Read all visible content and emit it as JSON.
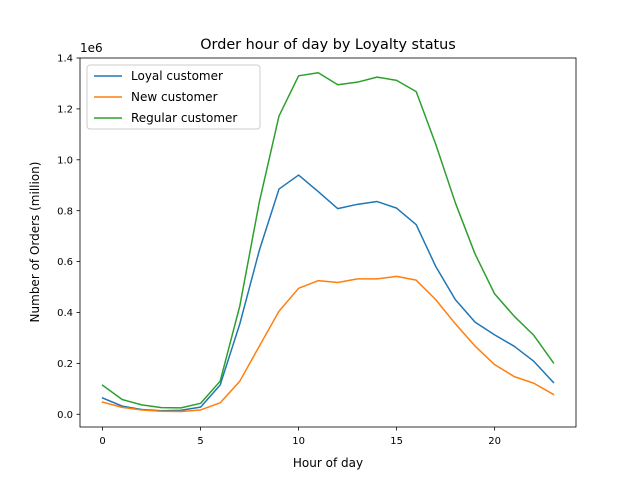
{
  "chart_data": {
    "type": "line",
    "title": "Order hour of day by Loyalty status",
    "xlabel": "Hour of day",
    "ylabel": "Number of Orders (million)",
    "y_offset_label": "1e6",
    "xlim": [
      -1.15,
      24.15
    ],
    "ylim": [
      -0.05,
      1.4
    ],
    "x_ticks": [
      0,
      5,
      10,
      15,
      20
    ],
    "y_ticks": [
      0.0,
      0.2,
      0.4,
      0.6,
      0.8,
      1.0,
      1.2,
      1.4
    ],
    "y_tick_labels": [
      "0.0",
      "0.2",
      "0.4",
      "0.6",
      "0.8",
      "1.0",
      "1.2",
      "1.4"
    ],
    "grid": false,
    "legend_position": "top-left",
    "x": [
      0,
      1,
      2,
      3,
      4,
      5,
      6,
      7,
      8,
      9,
      10,
      11,
      12,
      13,
      14,
      15,
      16,
      17,
      18,
      19,
      20,
      21,
      22,
      23
    ],
    "series": [
      {
        "name": "Loyal customer",
        "color": "#1f77b4",
        "values": [
          0.064,
          0.032,
          0.019,
          0.014,
          0.016,
          0.028,
          0.115,
          0.355,
          0.645,
          0.885,
          0.94,
          0.875,
          0.808,
          0.825,
          0.836,
          0.81,
          0.745,
          0.58,
          0.45,
          0.362,
          0.312,
          0.267,
          0.208,
          0.125
        ]
      },
      {
        "name": "New customer",
        "color": "#ff7f0e",
        "values": [
          0.048,
          0.027,
          0.017,
          0.012,
          0.011,
          0.017,
          0.045,
          0.13,
          0.268,
          0.405,
          0.495,
          0.525,
          0.518,
          0.532,
          0.532,
          0.542,
          0.527,
          0.45,
          0.355,
          0.268,
          0.195,
          0.148,
          0.122,
          0.078
        ]
      },
      {
        "name": "Regular customer",
        "color": "#2ca02c",
        "values": [
          0.114,
          0.058,
          0.037,
          0.026,
          0.025,
          0.043,
          0.13,
          0.425,
          0.835,
          1.172,
          1.33,
          1.342,
          1.295,
          1.305,
          1.325,
          1.312,
          1.268,
          1.06,
          0.83,
          0.63,
          0.473,
          0.385,
          0.31,
          0.202
        ]
      }
    ]
  }
}
